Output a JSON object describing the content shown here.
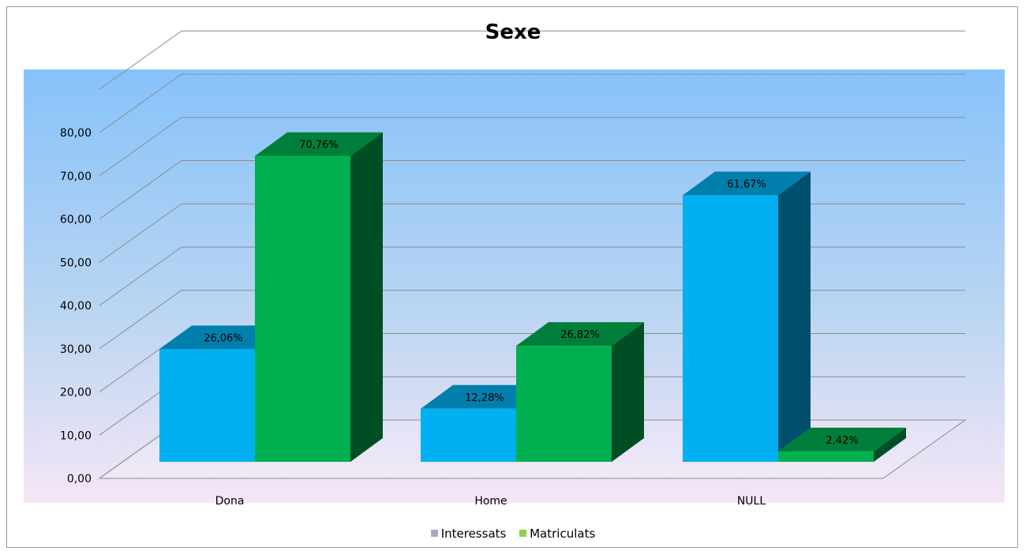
{
  "chart_data": {
    "type": "bar",
    "title": "Sexe",
    "categories": [
      "Dona",
      "Home",
      "NULL"
    ],
    "series": [
      {
        "name": "Interessats",
        "values": [
          26.06,
          12.28,
          61.67
        ],
        "labels": [
          "26,06%",
          "12,28%",
          "61,67%"
        ],
        "color": "#00B0F0",
        "legend_color": "#B3A2C7"
      },
      {
        "name": "Matriculats",
        "values": [
          70.76,
          26.82,
          2.42
        ],
        "labels": [
          "70,76%",
          "26,82%",
          "2,42%"
        ],
        "color": "#00B050",
        "legend_color": "#92D050"
      }
    ],
    "yticks": [
      "0,00",
      "10,00",
      "20,00",
      "30,00",
      "40,00",
      "50,00",
      "60,00",
      "70,00",
      "80,00"
    ],
    "ylim": [
      0,
      80
    ],
    "grid": true,
    "three_d": true,
    "legend": "bottom"
  }
}
